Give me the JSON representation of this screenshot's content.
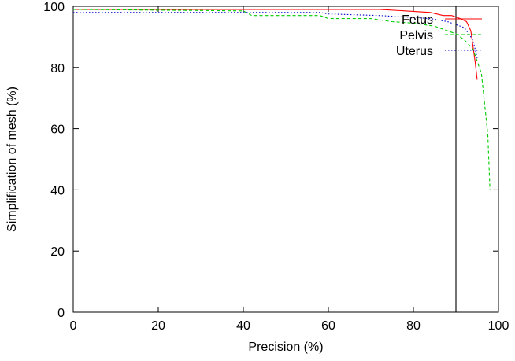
{
  "chart_data": {
    "type": "line",
    "title": "",
    "xlabel": "Precision (%)",
    "ylabel": "Simplification of mesh (%)",
    "xlim": [
      0,
      100
    ],
    "ylim": [
      0,
      100
    ],
    "x_ticks": [
      "0",
      "20",
      "40",
      "60",
      "80",
      "100"
    ],
    "y_ticks": [
      "0",
      "20",
      "40",
      "60",
      "80",
      "100"
    ],
    "grid": false,
    "legend_position": "top-right",
    "reference_line_x": 90,
    "series": [
      {
        "name": "Fetus",
        "color": "#ff0000",
        "line_style": "solid",
        "x": [
          0,
          72,
          78,
          84,
          87,
          89,
          90,
          91,
          92.5,
          93.5,
          94.5,
          95
        ],
        "y": [
          99,
          99,
          98.5,
          98,
          97,
          97,
          96.5,
          96,
          95,
          92,
          82,
          76
        ]
      },
      {
        "name": "Pelvis",
        "color": "#00cc00",
        "line_style": "dashed",
        "x": [
          0,
          40,
          42,
          58,
          60,
          70,
          75,
          80,
          85,
          88,
          90,
          92,
          94,
          96,
          97.5,
          98
        ],
        "y": [
          99,
          98.5,
          97,
          97,
          96,
          96,
          95,
          94.5,
          93.5,
          92,
          91,
          89,
          86,
          78,
          58,
          40
        ]
      },
      {
        "name": "Uterus",
        "color": "#0000cc",
        "line_style": "dotted",
        "x": [
          0,
          40,
          58,
          60,
          72,
          78,
          84,
          88,
          90,
          92,
          94,
          95
        ],
        "y": [
          98,
          98,
          98,
          97.5,
          97,
          96.5,
          96,
          95,
          94,
          93,
          89,
          83
        ]
      }
    ]
  }
}
